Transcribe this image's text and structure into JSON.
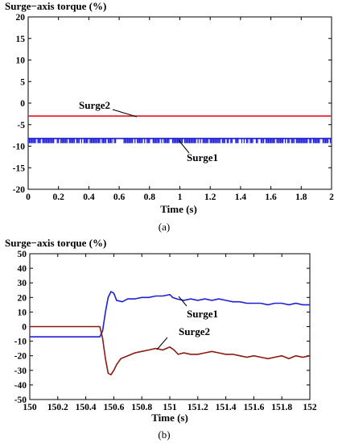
{
  "chart_data": [
    {
      "type": "line",
      "title": "Surge−axis torque (%)",
      "xlabel": "Time (s)",
      "ylabel": "",
      "caption": "(a)",
      "xlim": [
        0,
        2
      ],
      "ylim": [
        -20,
        20
      ],
      "xticks": [
        "0",
        "0.2",
        "0.4",
        "0.6",
        "0.8",
        "1",
        "1.2",
        "1.4",
        "1.6",
        "1.8",
        "2"
      ],
      "yticks": [
        "20",
        "15",
        "10",
        "5",
        "0",
        "-5",
        "-10",
        "-15",
        "-20"
      ],
      "grid": false,
      "series": [
        {
          "name": "Surge2",
          "color": "#e8141c",
          "x": [
            0,
            2
          ],
          "y": [
            -3,
            -3
          ]
        },
        {
          "name": "Surge1",
          "color": "#1f1fd6",
          "x": [
            0,
            2
          ],
          "y": [
            -8.2,
            -8.2
          ],
          "ripple_low": -9.3
        }
      ],
      "annotations": [
        {
          "text": "Surge2",
          "x": 0.7,
          "y": -3
        },
        {
          "text": "Surge1",
          "x": 1.05,
          "y": -8.2
        }
      ]
    },
    {
      "type": "line",
      "title": "Surge−axis torque (%)",
      "xlabel": "Time (s)",
      "ylabel": "",
      "caption": "(b)",
      "xlim": [
        150,
        152
      ],
      "ylim": [
        -50,
        50
      ],
      "xticks": [
        "150",
        "150.2",
        "150.4",
        "150.6",
        "150.8",
        "151",
        "151.2",
        "151.4",
        "151.6",
        "151.8",
        "152"
      ],
      "yticks": [
        "50",
        "40",
        "30",
        "20",
        "10",
        "0",
        "-10",
        "-20",
        "-30",
        "-40",
        "-50"
      ],
      "grid": false,
      "series": [
        {
          "name": "Surge1",
          "color": "#1f1fd6",
          "x": [
            150,
            150.5,
            150.52,
            150.54,
            150.56,
            150.58,
            150.6,
            150.62,
            150.66,
            150.7,
            150.75,
            150.8,
            150.85,
            150.9,
            150.95,
            151,
            151.02,
            151.05,
            151.1,
            151.15,
            151.2,
            151.25,
            151.3,
            151.35,
            151.4,
            151.45,
            151.5,
            151.55,
            151.6,
            151.65,
            151.7,
            151.75,
            151.8,
            151.85,
            151.9,
            151.95,
            152
          ],
          "y": [
            -7,
            -7,
            -3,
            10,
            20,
            24,
            23,
            18,
            17,
            19,
            19,
            20,
            20,
            21,
            21,
            22,
            20,
            19,
            18,
            19,
            18,
            19,
            18,
            19,
            18,
            17,
            17,
            16,
            16,
            16,
            15,
            16,
            16,
            15,
            16,
            15,
            15
          ]
        },
        {
          "name": "Surge2",
          "color": "#8b1a10",
          "x": [
            150,
            150.5,
            150.52,
            150.54,
            150.56,
            150.58,
            150.6,
            150.62,
            150.65,
            150.7,
            150.75,
            150.8,
            150.85,
            150.9,
            150.95,
            151,
            151.03,
            151.06,
            151.1,
            151.15,
            151.2,
            151.25,
            151.3,
            151.35,
            151.4,
            151.45,
            151.5,
            151.55,
            151.6,
            151.65,
            151.7,
            151.75,
            151.8,
            151.85,
            151.9,
            151.95,
            152
          ],
          "y": [
            0,
            0,
            -8,
            -22,
            -32,
            -33,
            -30,
            -26,
            -22,
            -20,
            -18,
            -17,
            -16,
            -15,
            -16,
            -14,
            -16,
            -19,
            -18,
            -19,
            -19,
            -18,
            -17,
            -18,
            -19,
            -19,
            -20,
            -21,
            -20,
            -21,
            -22,
            -21,
            -20,
            -22,
            -20,
            -21,
            -20
          ]
        }
      ],
      "annotations": [
        {
          "text": "Surge1",
          "x": 151.15,
          "y": 9
        },
        {
          "text": "Surge2",
          "x": 150.8,
          "y": -6.5
        }
      ]
    }
  ]
}
